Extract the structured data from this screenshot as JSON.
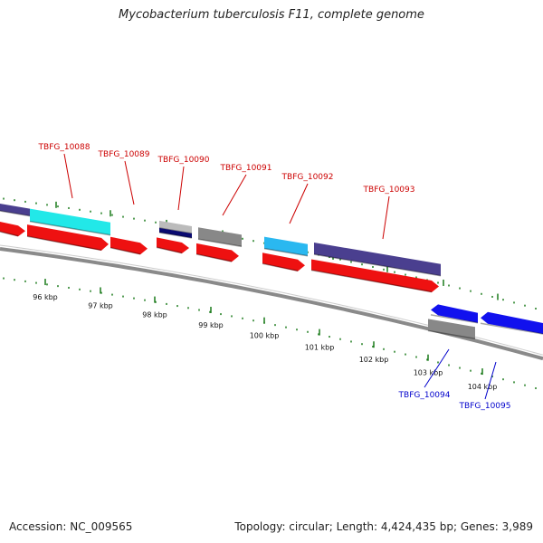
{
  "title": "Mycobacterium tuberculosis F11, complete genome",
  "footer": {
    "accession": "Accession: NC_009565",
    "topology": "Topology: circular;",
    "length": "Length: 4,424,435 bp;",
    "genes": "Genes: 3,989"
  },
  "colors": {
    "backbone": "#8a8a8a",
    "tick": "#1a7a1a",
    "forward_label": "#cc0000",
    "reverse_label": "#0000cc",
    "cds_red": "#ee1111",
    "cds_blue": "#1111ee",
    "cyan": "#22e8e8",
    "sky": "#2ab8f0",
    "slate": "#4a3f8f",
    "navy": "#0a0a70",
    "gray": "#888888",
    "light_gray": "#bbbbbb"
  },
  "scale": {
    "unit": "kbp",
    "major_ticks": [
      {
        "kbp": 96,
        "label": "96 kbp"
      },
      {
        "kbp": 97,
        "label": "97 kbp"
      },
      {
        "kbp": 98,
        "label": "98 kbp"
      },
      {
        "kbp": 99,
        "label": "99 kbp"
      },
      {
        "kbp": 100,
        "label": "100 kbp"
      },
      {
        "kbp": 101,
        "label": "101 kbp"
      },
      {
        "kbp": 102,
        "label": "102 kbp"
      },
      {
        "kbp": 103,
        "label": "103 kbp"
      },
      {
        "kbp": 104,
        "label": "104 kbp"
      }
    ]
  },
  "genes": [
    {
      "name": "TBFG_10088",
      "strand": "+",
      "label_color": "forward_label"
    },
    {
      "name": "TBFG_10089",
      "strand": "+",
      "label_color": "forward_label"
    },
    {
      "name": "TBFG_10090",
      "strand": "+",
      "label_color": "forward_label"
    },
    {
      "name": "TBFG_10091",
      "strand": "+",
      "label_color": "forward_label"
    },
    {
      "name": "TBFG_10092",
      "strand": "+",
      "label_color": "forward_label"
    },
    {
      "name": "TBFG_10093",
      "strand": "+",
      "label_color": "forward_label"
    },
    {
      "name": "TBFG_10094",
      "strand": "-",
      "label_color": "reverse_label"
    },
    {
      "name": "TBFG_10095",
      "strand": "-",
      "label_color": "reverse_label"
    }
  ]
}
